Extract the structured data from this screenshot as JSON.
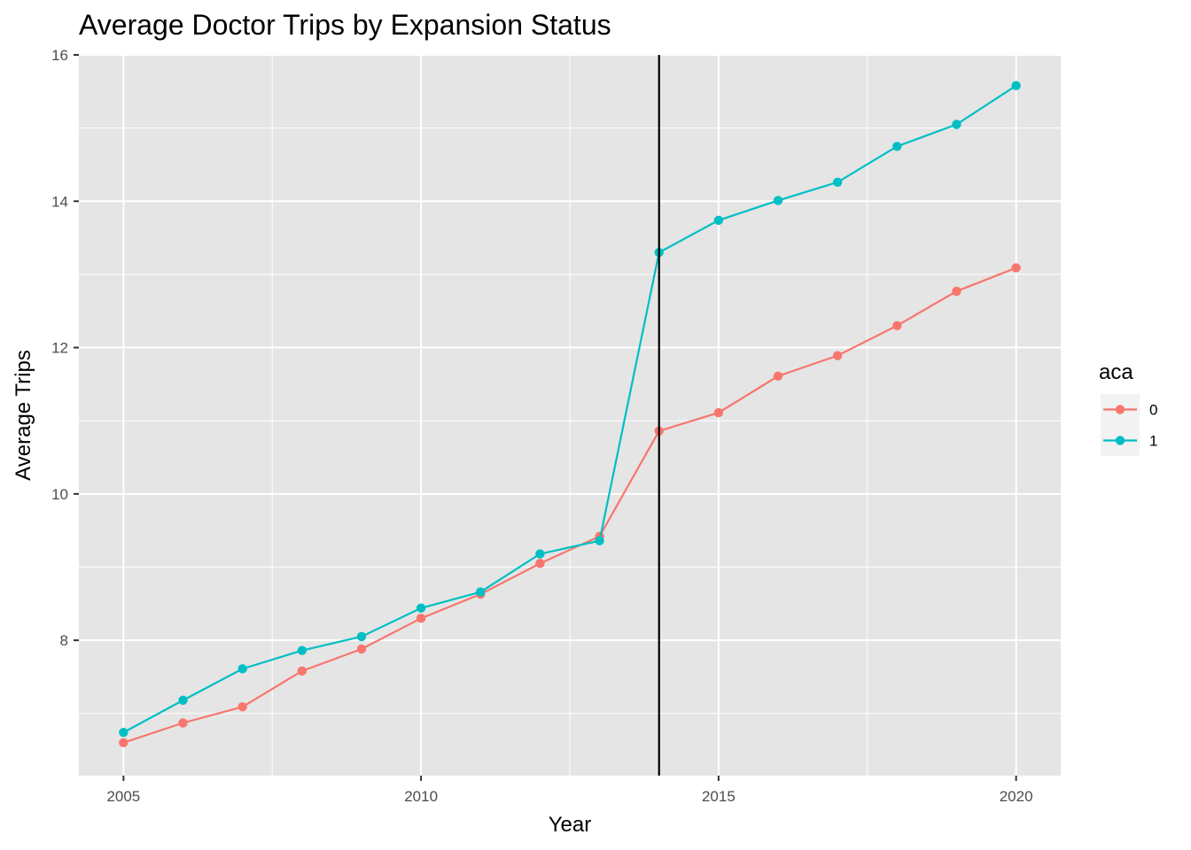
{
  "chart_data": {
    "type": "line",
    "title": "Average Doctor Trips by Expansion Status",
    "xlabel": "Year",
    "ylabel": "Average Trips",
    "x": [
      2005,
      2006,
      2007,
      2008,
      2009,
      2010,
      2011,
      2012,
      2013,
      2014,
      2015,
      2016,
      2017,
      2018,
      2019,
      2020
    ],
    "series": [
      {
        "name": "0",
        "color": "#F8766D",
        "values": [
          6.6,
          6.87,
          7.09,
          7.58,
          7.88,
          8.3,
          8.63,
          9.05,
          9.42,
          10.86,
          11.11,
          11.61,
          11.89,
          12.3,
          12.77,
          13.09
        ]
      },
      {
        "name": "1",
        "color": "#00BFC4",
        "values": [
          6.74,
          7.18,
          7.61,
          7.86,
          8.05,
          8.44,
          8.66,
          9.18,
          9.36,
          13.3,
          13.74,
          14.01,
          14.26,
          14.75,
          15.05,
          15.58
        ]
      }
    ],
    "xlim": [
      2004.25,
      2020.75
    ],
    "ylim": [
      6.15,
      16.0
    ],
    "x_ticks": [
      2005,
      2010,
      2015,
      2020
    ],
    "y_ticks": [
      8,
      10,
      12,
      14,
      16
    ],
    "x_tick_labels": [
      "2005",
      "2010",
      "2015",
      "2020"
    ],
    "y_tick_labels": [
      "8",
      "10",
      "12",
      "14",
      "16"
    ],
    "vline_x": 2014,
    "vline_color": "#000000",
    "panel_background": "#E5E5E5",
    "grid": true,
    "legend": {
      "title": "aca",
      "placement": "right",
      "labels": [
        "0",
        "1"
      ]
    }
  }
}
